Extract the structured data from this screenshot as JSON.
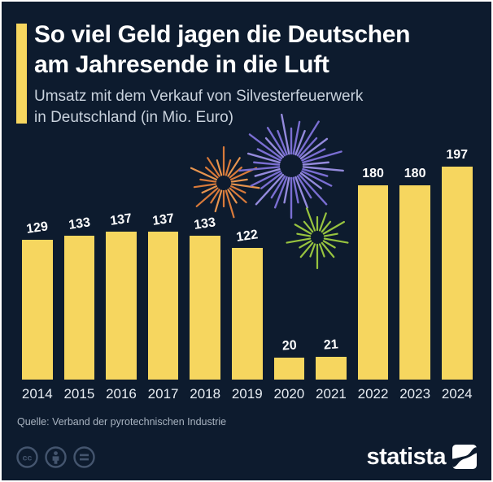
{
  "header": {
    "title_line1": "So viel Geld jagen die Deutschen",
    "title_line2": "am Jahresende in die Luft",
    "subtitle_line1": "Umsatz mit dem Verkauf von Silvesterfeuerwerk",
    "subtitle_line2": "in Deutschland (in Mio. Euro)"
  },
  "chart_data": {
    "type": "bar",
    "title": "So viel Geld jagen die Deutschen am Jahresende in die Luft",
    "subtitle": "Umsatz mit dem Verkauf von Silvesterfeuerwerk in Deutschland (in Mio. Euro)",
    "categories": [
      "2014",
      "2015",
      "2016",
      "2017",
      "2018",
      "2019",
      "2020",
      "2021",
      "2022",
      "2023",
      "2024"
    ],
    "values": [
      129,
      133,
      137,
      137,
      133,
      122,
      20,
      21,
      180,
      180,
      197
    ],
    "unit": "Mio. Euro",
    "xlabel": "",
    "ylabel": "",
    "ylim": [
      0,
      210
    ],
    "grid": false,
    "legend": null,
    "value_labels_shown": true,
    "bar_color": "#f6d65f"
  },
  "footer": {
    "source": "Quelle: Verband der pyrotechnischen Industrie",
    "brand": "statista",
    "license_icons": [
      "cc-icon",
      "attribution-icon",
      "no-derivatives-icon"
    ]
  },
  "colors": {
    "background": "#0d1b2e",
    "frame": "#ffffff",
    "accent_yellow": "#f6d65f",
    "title_text": "#ffffff",
    "subtitle_text": "#c9d2dd",
    "value_text": "#ffffff",
    "year_text": "#e8edf3",
    "source_text": "#a9b4c1",
    "license_icon": "#44556e",
    "firework_purple": "#7a6ed2",
    "firework_purple_light": "#948adc",
    "firework_orange": "#d97a3a",
    "firework_orange_light": "#e6944f",
    "firework_green": "#97c33f"
  }
}
